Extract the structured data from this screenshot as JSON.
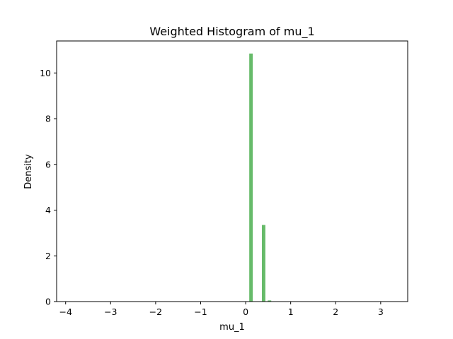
{
  "chart_data": {
    "type": "bar",
    "title": "Weighted Histogram of mu_1",
    "xlabel": "mu_1",
    "ylabel": "Density",
    "xlim": [
      -4.2,
      3.6
    ],
    "ylim": [
      0,
      11.4
    ],
    "xticks": [
      -4,
      -3,
      -2,
      -1,
      0,
      1,
      2,
      3
    ],
    "xtick_labels": [
      "−4",
      "−3",
      "−2",
      "−1",
      "0",
      "1",
      "2",
      "3"
    ],
    "yticks": [
      0,
      2,
      4,
      6,
      8,
      10
    ],
    "ytick_labels": [
      "0",
      "2",
      "4",
      "6",
      "8",
      "10"
    ],
    "bin_width": 0.078,
    "series": [
      {
        "color": "#4caf50",
        "bins": [
          {
            "x": 0.08,
            "height": 10.85
          },
          {
            "x": 0.36,
            "height": 3.35
          },
          {
            "x": 0.49,
            "height": 0.05
          }
        ]
      }
    ],
    "grid": false,
    "legend": "none"
  }
}
